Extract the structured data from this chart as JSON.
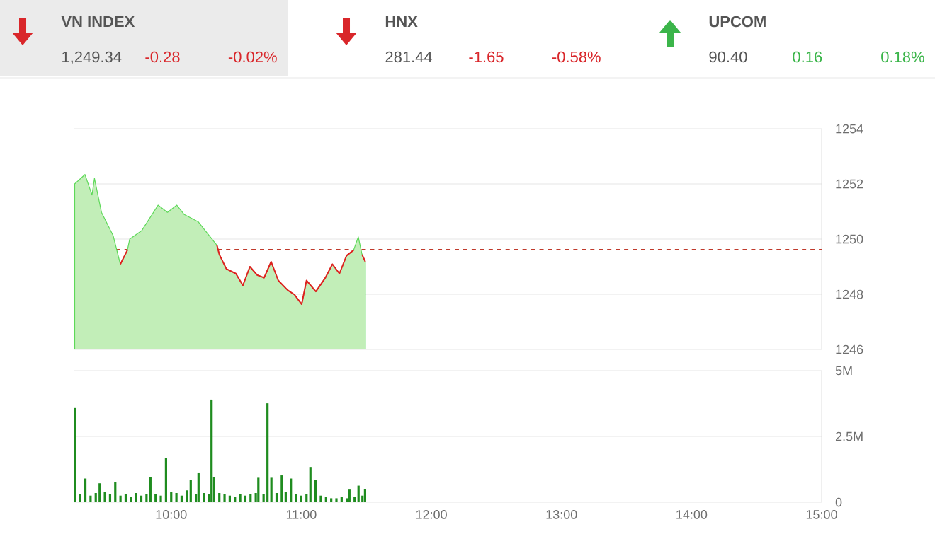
{
  "chart_data": [
    {
      "type": "other",
      "title": "VN INDEX",
      "annotations": [
        "1,249.34",
        "-0.28",
        "-0.02%"
      ],
      "color": "#d9262a"
    },
    {
      "type": "other",
      "title": "HNX",
      "annotations": [
        "281.44",
        "-1.65",
        "-0.58%"
      ],
      "color": "#d9262a"
    },
    {
      "type": "other",
      "title": "UPCOM",
      "annotations": [
        "90.40",
        "0.16",
        "0.18%"
      ],
      "color": "#3bb54a"
    },
    {
      "type": "area",
      "x": [
        9.258,
        9.337,
        9.391,
        9.41,
        9.464,
        9.554,
        9.609,
        9.663,
        9.681,
        9.772,
        9.899,
        9.971,
        10.043,
        10.098,
        10.207,
        10.279,
        10.351,
        10.37,
        10.424,
        10.497,
        10.551,
        10.605,
        10.66,
        10.714,
        10.768,
        10.823,
        10.895,
        10.949,
        11.003,
        11.04,
        11.112,
        11.185,
        11.239,
        11.293,
        11.348,
        11.402,
        11.438,
        11.467,
        11.492
      ],
      "series": [
        {
          "type": "area",
          "color": "#c2eeb8",
          "values": [
            1252.0,
            1252.34,
            1251.6,
            1252.2,
            1250.97,
            1250.12,
            1249.09,
            1249.6,
            1250.0,
            1250.3,
            1251.23,
            1250.97,
            1251.23,
            1250.9,
            1250.63,
            1250.2,
            1249.78,
            1249.44,
            1248.92,
            1248.75,
            1248.32,
            1249.0,
            1248.7,
            1248.6,
            1249.18,
            1248.5,
            1248.15,
            1247.98,
            1247.64,
            1248.5,
            1248.1,
            1248.6,
            1249.09,
            1248.75,
            1249.4,
            1249.6,
            1250.08,
            1249.44,
            1249.18
          ]
        },
        {
          "type": "line",
          "color": "#e02020",
          "values": [
            null,
            null,
            null,
            null,
            null,
            null,
            1249.09,
            1249.6,
            null,
            null,
            null,
            null,
            null,
            null,
            null,
            null,
            1249.78,
            1249.44,
            1248.92,
            1248.75,
            1248.32,
            1249.0,
            1248.7,
            1248.6,
            1249.18,
            1248.5,
            1248.15,
            1247.98,
            1247.64,
            1248.5,
            1248.1,
            1248.6,
            1249.09,
            1248.75,
            1249.4,
            1249.6,
            null,
            1249.44,
            1249.18
          ]
        }
      ],
      "xlim": [
        9.25,
        15
      ],
      "ylim": [
        1246,
        1254
      ],
      "yticks": [
        1246,
        1248,
        1250,
        1252,
        1254
      ],
      "ref_lines": [
        {
          "axis": "y",
          "value": 1249.62,
          "color": "#c0392b",
          "line_style": "dashed"
        }
      ],
      "grid": "y",
      "tick_labels": "y"
    },
    {
      "type": "bar",
      "color": "#1f8c1f",
      "x": [
        9.26,
        9.3,
        9.34,
        9.38,
        9.42,
        9.45,
        9.49,
        9.53,
        9.57,
        9.61,
        9.65,
        9.69,
        9.73,
        9.77,
        9.81,
        9.84,
        9.88,
        9.92,
        9.96,
        10.0,
        10.04,
        10.08,
        10.12,
        10.15,
        10.19,
        10.21,
        10.25,
        10.29,
        10.31,
        10.33,
        10.37,
        10.41,
        10.45,
        10.49,
        10.53,
        10.57,
        10.61,
        10.65,
        10.67,
        10.71,
        10.74,
        10.77,
        10.81,
        10.85,
        10.88,
        10.92,
        10.96,
        11.0,
        11.04,
        11.07,
        11.11,
        11.15,
        11.19,
        11.23,
        11.27,
        11.31,
        11.35,
        11.37,
        11.41,
        11.44,
        11.47,
        11.49
      ],
      "values": [
        3580000,
        300000,
        900000,
        250000,
        350000,
        720000,
        400000,
        300000,
        770000,
        250000,
        300000,
        200000,
        350000,
        250000,
        300000,
        950000,
        300000,
        250000,
        1670000,
        400000,
        350000,
        250000,
        450000,
        840000,
        300000,
        1130000,
        350000,
        300000,
        3900000,
        950000,
        350000,
        300000,
        250000,
        200000,
        300000,
        250000,
        300000,
        350000,
        930000,
        300000,
        3760000,
        930000,
        350000,
        1020000,
        400000,
        900000,
        300000,
        250000,
        300000,
        1340000,
        840000,
        250000,
        200000,
        150000,
        150000,
        200000,
        150000,
        480000,
        200000,
        630000,
        250000,
        500000
      ],
      "xlim": [
        9.25,
        15
      ],
      "xticks": [
        {
          "value": 10,
          "label": "10:00"
        },
        {
          "value": 11,
          "label": "11:00"
        },
        {
          "value": 12,
          "label": "12:00"
        },
        {
          "value": 13,
          "label": "13:00"
        },
        {
          "value": 14,
          "label": "14:00"
        },
        {
          "value": 15,
          "label": "15:00"
        }
      ],
      "ylim": [
        0,
        5000000
      ],
      "yticks": [
        0,
        {
          "value": 2500000,
          "label": "2.5M"
        },
        {
          "value": 5000000,
          "label": "5M"
        }
      ],
      "grid": "y"
    }
  ]
}
